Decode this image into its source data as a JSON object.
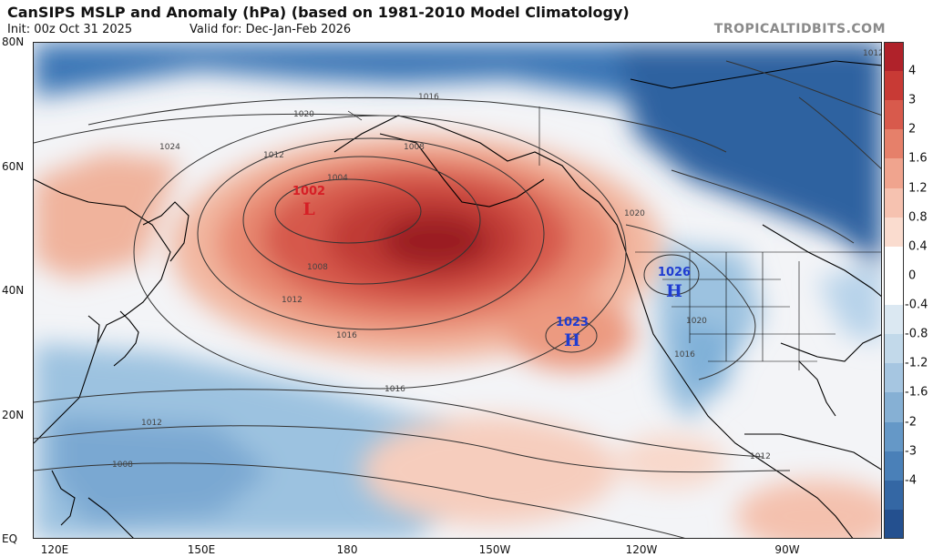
{
  "header": {
    "title": "CanSIPS MSLP and Anomaly (hPa) (based on 1981-2010 Model Climatology)",
    "init": "Init: 00z Oct 31 2025",
    "valid": "Valid for: Dec-Jan-Feb 2026",
    "brand": "TROPICALTIDBITS.COM"
  },
  "axes": {
    "lat_labels": [
      "80N",
      "60N",
      "40N",
      "20N",
      "EQ"
    ],
    "lon_labels": [
      "120E",
      "150E",
      "180",
      "150W",
      "120W",
      "90W"
    ]
  },
  "colorbar": {
    "labels": [
      "4",
      "3",
      "2",
      "1.6",
      "1.2",
      "0.8",
      "0.4",
      "0",
      "-0.4",
      "-0.8",
      "-1.2",
      "-1.6",
      "-2",
      "-3",
      "-4"
    ],
    "colors": [
      "#b0222a",
      "#c83a35",
      "#d85a4c",
      "#e6806a",
      "#f0a48e",
      "#f6c2b0",
      "#fadccf",
      "#ffffff",
      "#ffffff",
      "#dbe8f2",
      "#c2d9ea",
      "#a6c6e1",
      "#86b0d4",
      "#6598c7",
      "#4a80b8",
      "#3467a4",
      "#24508f"
    ]
  },
  "pressure_systems": [
    {
      "type": "L",
      "value": "1002",
      "color": "#d61f26"
    },
    {
      "type": "H",
      "value": "1026",
      "color": "#1f3cd1"
    },
    {
      "type": "H",
      "value": "1023",
      "color": "#1f3cd1"
    }
  ],
  "contour_labels": [
    "1016",
    "1020",
    "1024",
    "1012",
    "1008",
    "1004",
    "1008",
    "1012",
    "1016",
    "1016",
    "1012",
    "1008",
    "1012",
    "1020",
    "1020",
    "1016",
    "1012"
  ]
}
